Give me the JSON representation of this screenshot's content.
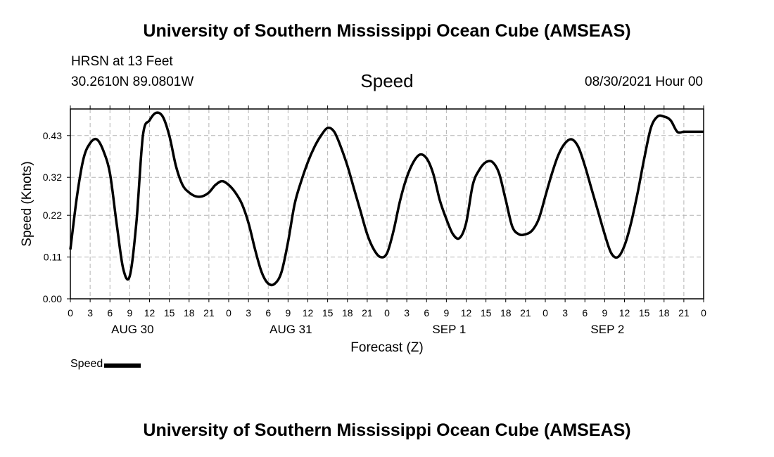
{
  "header": {
    "title": "University of Southern Mississippi Ocean Cube (AMSEAS)",
    "station": "HRSN at 13 Feet",
    "coords": "30.2610N  89.0801W",
    "variable": "Speed",
    "datetime": "08/30/2021 Hour 00"
  },
  "footer": {
    "title": "University of Southern Mississippi Ocean Cube (AMSEAS)"
  },
  "legend": {
    "label": "Speed"
  },
  "colors": {
    "line": "#000000",
    "grid": "#b4b4b4",
    "background": "#ffffff"
  },
  "chart_data": {
    "type": "line",
    "title": "Speed",
    "xlabel": "Forecast (Z)",
    "ylabel": "Speed (Knots)",
    "xlim": [
      0,
      96
    ],
    "ylim": [
      0,
      0.5
    ],
    "yticks": [
      0.0,
      0.11,
      0.22,
      0.32,
      0.43
    ],
    "ytick_labels": [
      "0.00",
      "0.11",
      "0.22",
      "0.32",
      "0.43"
    ],
    "xticks": [
      0,
      3,
      6,
      9,
      12,
      15,
      18,
      21,
      24,
      27,
      30,
      33,
      36,
      39,
      42,
      45,
      48,
      51,
      54,
      57,
      60,
      63,
      66,
      69,
      72,
      75,
      78,
      81,
      84,
      87,
      90,
      93,
      96
    ],
    "xtick_labels": [
      "0",
      "3",
      "6",
      "9",
      "12",
      "15",
      "18",
      "21",
      "0",
      "3",
      "6",
      "9",
      "12",
      "15",
      "18",
      "21",
      "0",
      "3",
      "6",
      "9",
      "12",
      "15",
      "18",
      "21",
      "0",
      "3",
      "6",
      "9",
      "12",
      "15",
      "18",
      "21",
      "0"
    ],
    "day_labels": [
      {
        "hour": 9,
        "label": "AUG 30"
      },
      {
        "hour": 33,
        "label": "AUG 31"
      },
      {
        "hour": 57,
        "label": "SEP 1"
      },
      {
        "hour": 81,
        "label": "SEP 2"
      }
    ],
    "grid": true,
    "series": [
      {
        "name": "Speed",
        "x": [
          0,
          1,
          2,
          3,
          4,
          5,
          6,
          7,
          8,
          9,
          10,
          11,
          12,
          13,
          14,
          15,
          16,
          17,
          18,
          19,
          20,
          21,
          22,
          23,
          24,
          25,
          26,
          27,
          28,
          29,
          30,
          31,
          32,
          33,
          34,
          35,
          36,
          37,
          38,
          39,
          40,
          41,
          42,
          43,
          44,
          45,
          46,
          47,
          48,
          49,
          50,
          51,
          52,
          53,
          54,
          55,
          56,
          57,
          58,
          59,
          60,
          61,
          62,
          63,
          64,
          65,
          66,
          67,
          68,
          69,
          70,
          71,
          72,
          73,
          74,
          75,
          76,
          77,
          78,
          79,
          80,
          81,
          82,
          83,
          84,
          85,
          86,
          87,
          88,
          89,
          90,
          91,
          92,
          93,
          94,
          95,
          96
        ],
        "values": [
          0.13,
          0.27,
          0.37,
          0.41,
          0.42,
          0.39,
          0.33,
          0.2,
          0.08,
          0.06,
          0.2,
          0.43,
          0.47,
          0.49,
          0.48,
          0.43,
          0.35,
          0.3,
          0.28,
          0.27,
          0.27,
          0.28,
          0.3,
          0.31,
          0.3,
          0.28,
          0.25,
          0.2,
          0.13,
          0.07,
          0.04,
          0.04,
          0.07,
          0.15,
          0.25,
          0.31,
          0.36,
          0.4,
          0.43,
          0.45,
          0.44,
          0.4,
          0.35,
          0.29,
          0.23,
          0.17,
          0.13,
          0.11,
          0.12,
          0.18,
          0.26,
          0.32,
          0.36,
          0.38,
          0.37,
          0.33,
          0.26,
          0.21,
          0.17,
          0.16,
          0.2,
          0.3,
          0.34,
          0.36,
          0.36,
          0.33,
          0.26,
          0.19,
          0.17,
          0.17,
          0.18,
          0.21,
          0.27,
          0.33,
          0.38,
          0.41,
          0.42,
          0.4,
          0.35,
          0.29,
          0.23,
          0.17,
          0.12,
          0.11,
          0.14,
          0.2,
          0.28,
          0.37,
          0.45,
          0.48,
          0.48,
          0.47,
          0.44,
          0.44,
          0.44,
          0.44,
          0.44
        ]
      }
    ]
  }
}
